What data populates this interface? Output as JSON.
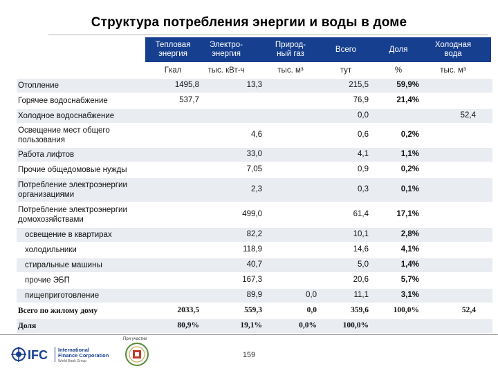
{
  "title": "Структура потребления энергии и воды в доме",
  "header": {
    "columns": [
      {
        "label": "Тепловая энергия",
        "unit": "Гкал"
      },
      {
        "label": "Электро-энергия",
        "unit": "тыс. кВт-ч"
      },
      {
        "label": "Природ-ный газ",
        "unit": "тыс. м³"
      },
      {
        "label": "Всего",
        "unit": "тут"
      },
      {
        "label": "Доля",
        "unit": "%"
      },
      {
        "label": "Холодная вода",
        "unit": "тыс. м³"
      }
    ],
    "colors": {
      "band": "#173f8f",
      "row_shade": "#e9ecf1"
    }
  },
  "rows": [
    {
      "label": "Отопление",
      "heat": "1495,8",
      "elec": "13,3",
      "gas": "",
      "total": "215,5",
      "share": "59,9%",
      "water": ""
    },
    {
      "label": "Горячее водоснабжение",
      "heat": "537,7",
      "elec": "",
      "gas": "",
      "total": "76,9",
      "share": "21,4%",
      "water": ""
    },
    {
      "label": "Холодное водоснабжение",
      "heat": "",
      "elec": "",
      "gas": "",
      "total": "0,0",
      "share": "",
      "water": "52,4"
    },
    {
      "label": "Освещение мест общего пользования",
      "heat": "",
      "elec": "4,6",
      "gas": "",
      "total": "0,6",
      "share": "0,2%",
      "water": ""
    },
    {
      "label": "Работа лифтов",
      "heat": "",
      "elec": "33,0",
      "gas": "",
      "total": "4,1",
      "share": "1,1%",
      "water": ""
    },
    {
      "label": "Прочие общедомовые нужды",
      "heat": "",
      "elec": "7,05",
      "gas": "",
      "total": "0,9",
      "share": "0,2%",
      "water": ""
    },
    {
      "label": "Потребление электроэнергии организациями",
      "heat": "",
      "elec": "2,3",
      "gas": "",
      "total": "0,3",
      "share": "0,1%",
      "water": ""
    },
    {
      "label": "Потребление электроэнергии домохозяйствами",
      "heat": "",
      "elec": "499,0",
      "gas": "",
      "total": "61,4",
      "share": "17,1%",
      "water": ""
    },
    {
      "label": "освещение в квартирах",
      "heat": "",
      "elec": "82,2",
      "gas": "",
      "total": "10,1",
      "share": "2,8%",
      "water": ""
    },
    {
      "label": "холодильники",
      "heat": "",
      "elec": "118,9",
      "gas": "",
      "total": "14,6",
      "share": "4,1%",
      "water": ""
    },
    {
      "label": "стиральные машины",
      "heat": "",
      "elec": "40,7",
      "gas": "",
      "total": "5,0",
      "share": "1,4%",
      "water": ""
    },
    {
      "label": "прочие ЭБП",
      "heat": "",
      "elec": "167,3",
      "gas": "",
      "total": "20,6",
      "share": "5,7%",
      "water": ""
    },
    {
      "label": "пищеприготовление",
      "heat": "",
      "elec": "89,9",
      "gas": "0,0",
      "total": "11,1",
      "share": "3,1%",
      "water": ""
    },
    {
      "label": "Всего по жилому дому",
      "heat": "2033,5",
      "elec": "559,3",
      "gas": "0,0",
      "total": "359,6",
      "share": "100,0%",
      "water": "52,4"
    },
    {
      "label": "Доля",
      "heat": "80,9%",
      "elec": "19,1%",
      "gas": "0,0%",
      "total": "100,0%",
      "share": "",
      "water": ""
    }
  ],
  "footer": {
    "logo_text_line1": "International",
    "logo_text_line2": "Finance Corporation",
    "logo_text_line3": "World Bank Group",
    "logo_mark": "IFC",
    "partner_label": "При участии",
    "page_number": "159"
  }
}
